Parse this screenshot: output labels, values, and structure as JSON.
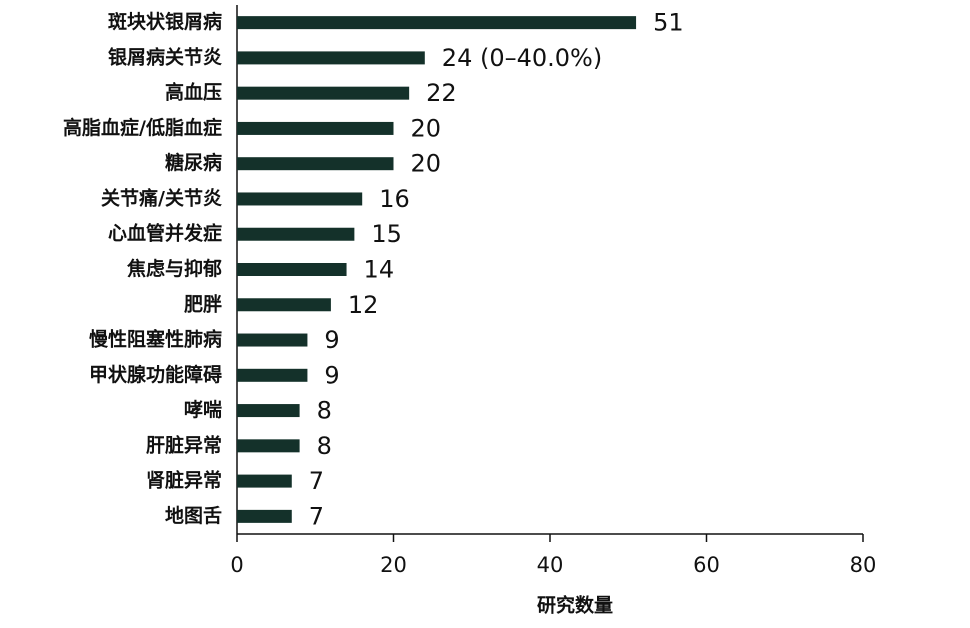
{
  "chart_data": {
    "type": "barh",
    "xlabel": "研究数量",
    "categories": [
      "斑块状银屑病",
      "银屑病关节炎",
      "高血压",
      "高脂血症/低脂血症",
      "糖尿病",
      "关节痛/关节炎",
      "心血管并发症",
      "焦虑与抑郁",
      "肥胖",
      "慢性阻塞性肺病",
      "甲状腺功能障碍",
      "哮喘",
      "肝脏异常",
      "肾脏异常",
      "地图舌"
    ],
    "values": [
      51,
      24,
      22,
      20,
      20,
      16,
      15,
      14,
      12,
      9,
      9,
      8,
      8,
      7,
      7
    ],
    "value_labels": [
      "51",
      "24 (0–40.0%)",
      "22",
      "20",
      "20",
      "16",
      "15",
      "14",
      "12",
      "9",
      "9",
      "8",
      "8",
      "7",
      "7"
    ],
    "color": "#14312a",
    "xlim": [
      0,
      80
    ],
    "xticks": [
      0,
      20,
      40,
      60,
      80
    ],
    "grid": false
  }
}
